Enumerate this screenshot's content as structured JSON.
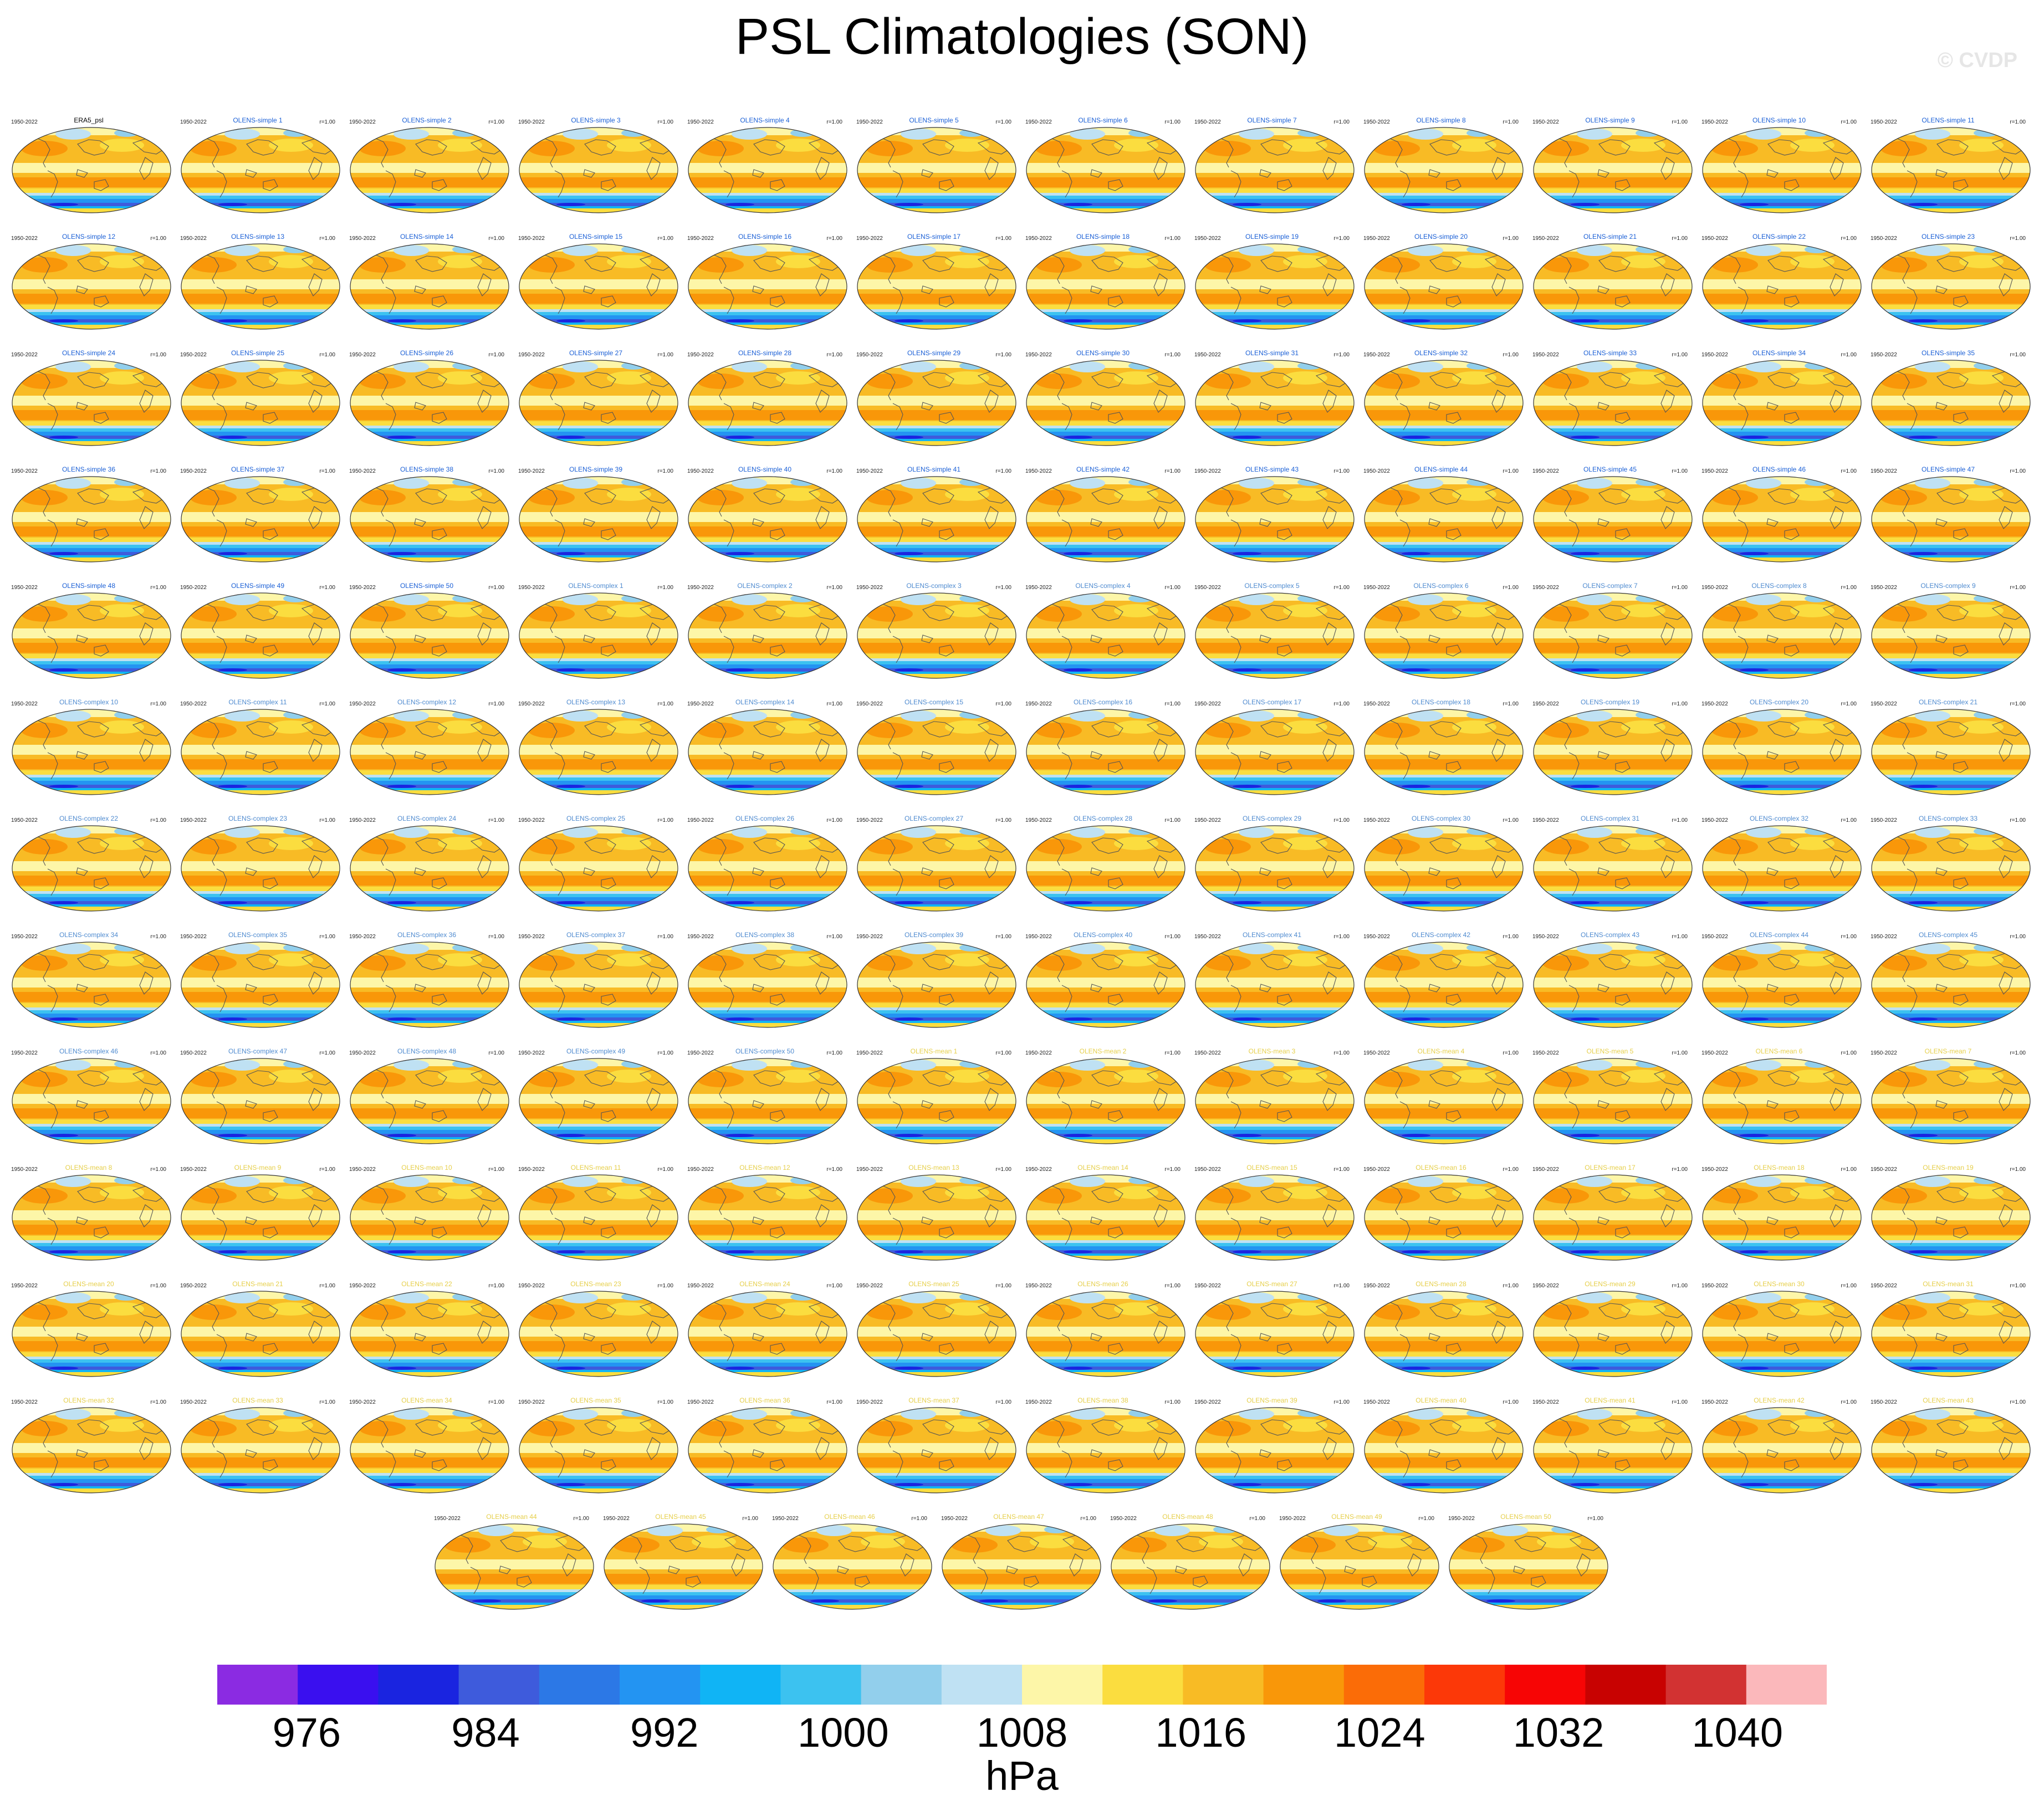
{
  "title": "PSL Climatologies (SON)",
  "watermark": "© CVDP",
  "units": "hPa",
  "chart_data": {
    "type": "heatmap",
    "title": "PSL Climatologies (SON)",
    "subtitle": "",
    "colorbar": {
      "label": "hPa",
      "tick_labels": [
        "976",
        "984",
        "992",
        "1000",
        "1008",
        "1016",
        "1024",
        "1032",
        "1040"
      ],
      "boundaries": [
        972,
        976,
        980,
        984,
        988,
        992,
        996,
        1000,
        1004,
        1008,
        1012,
        1016,
        1020,
        1024,
        1028,
        1032,
        1036,
        1040,
        1044
      ],
      "colors": [
        "#8b2be2",
        "#3a0fef",
        "#1a24e0",
        "#3e5bdc",
        "#2c78e6",
        "#2394f2",
        "#10b4f5",
        "#3cc2f0",
        "#92cfec",
        "#bfe1f3",
        "#fdf6a8",
        "#fbdd3f",
        "#f8bb25",
        "#f99709",
        "#fb6c07",
        "#fc3808",
        "#f70505",
        "#c80201",
        "#d23232",
        "#fbb8bb"
      ]
    },
    "panels": [
      {
        "title": "ERA5_psl",
        "period": "1950-2022",
        "corr": ""
      },
      {
        "title": "OLENS-simple 1",
        "period": "1950-2022",
        "corr": "r=1.00"
      },
      {
        "title": "OLENS-simple 2",
        "period": "1950-2022",
        "corr": "r=1.00"
      },
      {
        "title": "OLENS-simple 3",
        "period": "1950-2022",
        "corr": "r=1.00"
      },
      {
        "title": "OLENS-simple 4",
        "period": "1950-2022",
        "corr": "r=1.00"
      },
      {
        "title": "OLENS-simple 5",
        "period": "1950-2022",
        "corr": "r=1.00"
      },
      {
        "title": "OLENS-simple 6",
        "period": "1950-2022",
        "corr": "r=1.00"
      },
      {
        "title": "OLENS-simple 7",
        "period": "1950-2022",
        "corr": "r=1.00"
      },
      {
        "title": "OLENS-simple 8",
        "period": "1950-2022",
        "corr": "r=1.00"
      },
      {
        "title": "OLENS-simple 9",
        "period": "1950-2022",
        "corr": "r=1.00"
      },
      {
        "title": "OLENS-simple 10",
        "period": "1950-2022",
        "corr": "r=1.00"
      },
      {
        "title": "OLENS-simple 11",
        "period": "1950-2022",
        "corr": "r=1.00"
      },
      {
        "title": "OLENS-simple 12",
        "period": "1950-2022",
        "corr": "r=1.00"
      },
      {
        "title": "OLENS-simple 13",
        "period": "1950-2022",
        "corr": "r=1.00"
      },
      {
        "title": "OLENS-simple 14",
        "period": "1950-2022",
        "corr": "r=1.00"
      },
      {
        "title": "OLENS-simple 15",
        "period": "1950-2022",
        "corr": "r=1.00"
      },
      {
        "title": "OLENS-simple 16",
        "period": "1950-2022",
        "corr": "r=1.00"
      },
      {
        "title": "OLENS-simple 17",
        "period": "1950-2022",
        "corr": "r=1.00"
      },
      {
        "title": "OLENS-simple 18",
        "period": "1950-2022",
        "corr": "r=1.00"
      },
      {
        "title": "OLENS-simple 19",
        "period": "1950-2022",
        "corr": "r=1.00"
      },
      {
        "title": "OLENS-simple 20",
        "period": "1950-2022",
        "corr": "r=1.00"
      },
      {
        "title": "OLENS-simple 21",
        "period": "1950-2022",
        "corr": "r=1.00"
      },
      {
        "title": "OLENS-simple 22",
        "period": "1950-2022",
        "corr": "r=1.00"
      },
      {
        "title": "OLENS-simple 23",
        "period": "1950-2022",
        "corr": "r=1.00"
      },
      {
        "title": "OLENS-simple 24",
        "period": "1950-2022",
        "corr": "r=1.00"
      },
      {
        "title": "OLENS-simple 25",
        "period": "1950-2022",
        "corr": "r=1.00"
      },
      {
        "title": "OLENS-simple 26",
        "period": "1950-2022",
        "corr": "r=1.00"
      },
      {
        "title": "OLENS-simple 27",
        "period": "1950-2022",
        "corr": "r=1.00"
      },
      {
        "title": "OLENS-simple 28",
        "period": "1950-2022",
        "corr": "r=1.00"
      },
      {
        "title": "OLENS-simple 29",
        "period": "1950-2022",
        "corr": "r=1.00"
      },
      {
        "title": "OLENS-simple 30",
        "period": "1950-2022",
        "corr": "r=1.00"
      },
      {
        "title": "OLENS-simple 31",
        "period": "1950-2022",
        "corr": "r=1.00"
      },
      {
        "title": "OLENS-simple 32",
        "period": "1950-2022",
        "corr": "r=1.00"
      },
      {
        "title": "OLENS-simple 33",
        "period": "1950-2022",
        "corr": "r=1.00"
      },
      {
        "title": "OLENS-simple 34",
        "period": "1950-2022",
        "corr": "r=1.00"
      },
      {
        "title": "OLENS-simple 35",
        "period": "1950-2022",
        "corr": "r=1.00"
      },
      {
        "title": "OLENS-simple 36",
        "period": "1950-2022",
        "corr": "r=1.00"
      },
      {
        "title": "OLENS-simple 37",
        "period": "1950-2022",
        "corr": "r=1.00"
      },
      {
        "title": "OLENS-simple 38",
        "period": "1950-2022",
        "corr": "r=1.00"
      },
      {
        "title": "OLENS-simple 39",
        "period": "1950-2022",
        "corr": "r=1.00"
      },
      {
        "title": "OLENS-simple 40",
        "period": "1950-2022",
        "corr": "r=1.00"
      },
      {
        "title": "OLENS-simple 41",
        "period": "1950-2022",
        "corr": "r=1.00"
      },
      {
        "title": "OLENS-simple 42",
        "period": "1950-2022",
        "corr": "r=1.00"
      },
      {
        "title": "OLENS-simple 43",
        "period": "1950-2022",
        "corr": "r=1.00"
      },
      {
        "title": "OLENS-simple 44",
        "period": "1950-2022",
        "corr": "r=1.00"
      },
      {
        "title": "OLENS-simple 45",
        "period": "1950-2022",
        "corr": "r=1.00"
      },
      {
        "title": "OLENS-simple 46",
        "period": "1950-2022",
        "corr": "r=1.00"
      },
      {
        "title": "OLENS-simple 47",
        "period": "1950-2022",
        "corr": "r=1.00"
      },
      {
        "title": "OLENS-simple 48",
        "period": "1950-2022",
        "corr": "r=1.00"
      },
      {
        "title": "OLENS-simple 49",
        "period": "1950-2022",
        "corr": "r=1.00"
      },
      {
        "title": "OLENS-simple 50",
        "period": "1950-2022",
        "corr": "r=1.00"
      },
      {
        "title": "OLENS-complex 1",
        "period": "1950-2022",
        "corr": "r=1.00"
      },
      {
        "title": "OLENS-complex 2",
        "period": "1950-2022",
        "corr": "r=1.00"
      },
      {
        "title": "OLENS-complex 3",
        "period": "1950-2022",
        "corr": "r=1.00"
      },
      {
        "title": "OLENS-complex 4",
        "period": "1950-2022",
        "corr": "r=1.00"
      },
      {
        "title": "OLENS-complex 5",
        "period": "1950-2022",
        "corr": "r=1.00"
      },
      {
        "title": "OLENS-complex 6",
        "period": "1950-2022",
        "corr": "r=1.00"
      },
      {
        "title": "OLENS-complex 7",
        "period": "1950-2022",
        "corr": "r=1.00"
      },
      {
        "title": "OLENS-complex 8",
        "period": "1950-2022",
        "corr": "r=1.00"
      },
      {
        "title": "OLENS-complex 9",
        "period": "1950-2022",
        "corr": "r=1.00"
      },
      {
        "title": "OLENS-complex 10",
        "period": "1950-2022",
        "corr": "r=1.00"
      },
      {
        "title": "OLENS-complex 11",
        "period": "1950-2022",
        "corr": "r=1.00"
      },
      {
        "title": "OLENS-complex 12",
        "period": "1950-2022",
        "corr": "r=1.00"
      },
      {
        "title": "OLENS-complex 13",
        "period": "1950-2022",
        "corr": "r=1.00"
      },
      {
        "title": "OLENS-complex 14",
        "period": "1950-2022",
        "corr": "r=1.00"
      },
      {
        "title": "OLENS-complex 15",
        "period": "1950-2022",
        "corr": "r=1.00"
      },
      {
        "title": "OLENS-complex 16",
        "period": "1950-2022",
        "corr": "r=1.00"
      },
      {
        "title": "OLENS-complex 17",
        "period": "1950-2022",
        "corr": "r=1.00"
      },
      {
        "title": "OLENS-complex 18",
        "period": "1950-2022",
        "corr": "r=1.00"
      },
      {
        "title": "OLENS-complex 19",
        "period": "1950-2022",
        "corr": "r=1.00"
      },
      {
        "title": "OLENS-complex 20",
        "period": "1950-2022",
        "corr": "r=1.00"
      },
      {
        "title": "OLENS-complex 21",
        "period": "1950-2022",
        "corr": "r=1.00"
      },
      {
        "title": "OLENS-complex 22",
        "period": "1950-2022",
        "corr": "r=1.00"
      },
      {
        "title": "OLENS-complex 23",
        "period": "1950-2022",
        "corr": "r=1.00"
      },
      {
        "title": "OLENS-complex 24",
        "period": "1950-2022",
        "corr": "r=1.00"
      },
      {
        "title": "OLENS-complex 25",
        "period": "1950-2022",
        "corr": "r=1.00"
      },
      {
        "title": "OLENS-complex 26",
        "period": "1950-2022",
        "corr": "r=1.00"
      },
      {
        "title": "OLENS-complex 27",
        "period": "1950-2022",
        "corr": "r=1.00"
      },
      {
        "title": "OLENS-complex 28",
        "period": "1950-2022",
        "corr": "r=1.00"
      },
      {
        "title": "OLENS-complex 29",
        "period": "1950-2022",
        "corr": "r=1.00"
      },
      {
        "title": "OLENS-complex 30",
        "period": "1950-2022",
        "corr": "r=1.00"
      },
      {
        "title": "OLENS-complex 31",
        "period": "1950-2022",
        "corr": "r=1.00"
      },
      {
        "title": "OLENS-complex 32",
        "period": "1950-2022",
        "corr": "r=1.00"
      },
      {
        "title": "OLENS-complex 33",
        "period": "1950-2022",
        "corr": "r=1.00"
      },
      {
        "title": "OLENS-complex 34",
        "period": "1950-2022",
        "corr": "r=1.00"
      },
      {
        "title": "OLENS-complex 35",
        "period": "1950-2022",
        "corr": "r=1.00"
      },
      {
        "title": "OLENS-complex 36",
        "period": "1950-2022",
        "corr": "r=1.00"
      },
      {
        "title": "OLENS-complex 37",
        "period": "1950-2022",
        "corr": "r=1.00"
      },
      {
        "title": "OLENS-complex 38",
        "period": "1950-2022",
        "corr": "r=1.00"
      },
      {
        "title": "OLENS-complex 39",
        "period": "1950-2022",
        "corr": "r=1.00"
      },
      {
        "title": "OLENS-complex 40",
        "period": "1950-2022",
        "corr": "r=1.00"
      },
      {
        "title": "OLENS-complex 41",
        "period": "1950-2022",
        "corr": "r=1.00"
      },
      {
        "title": "OLENS-complex 42",
        "period": "1950-2022",
        "corr": "r=1.00"
      },
      {
        "title": "OLENS-complex 43",
        "period": "1950-2022",
        "corr": "r=1.00"
      },
      {
        "title": "OLENS-complex 44",
        "period": "1950-2022",
        "corr": "r=1.00"
      },
      {
        "title": "OLENS-complex 45",
        "period": "1950-2022",
        "corr": "r=1.00"
      },
      {
        "title": "OLENS-complex 46",
        "period": "1950-2022",
        "corr": "r=1.00"
      },
      {
        "title": "OLENS-complex 47",
        "period": "1950-2022",
        "corr": "r=1.00"
      },
      {
        "title": "OLENS-complex 48",
        "period": "1950-2022",
        "corr": "r=1.00"
      },
      {
        "title": "OLENS-complex 49",
        "period": "1950-2022",
        "corr": "r=1.00"
      },
      {
        "title": "OLENS-complex 50",
        "period": "1950-2022",
        "corr": "r=1.00"
      },
      {
        "title": "OLENS-mean 1",
        "period": "1950-2022",
        "corr": "r=1.00"
      },
      {
        "title": "OLENS-mean 2",
        "period": "1950-2022",
        "corr": "r=1.00"
      },
      {
        "title": "OLENS-mean 3",
        "period": "1950-2022",
        "corr": "r=1.00"
      },
      {
        "title": "OLENS-mean 4",
        "period": "1950-2022",
        "corr": "r=1.00"
      },
      {
        "title": "OLENS-mean 5",
        "period": "1950-2022",
        "corr": "r=1.00"
      },
      {
        "title": "OLENS-mean 6",
        "period": "1950-2022",
        "corr": "r=1.00"
      },
      {
        "title": "OLENS-mean 7",
        "period": "1950-2022",
        "corr": "r=1.00"
      },
      {
        "title": "OLENS-mean 8",
        "period": "1950-2022",
        "corr": "r=1.00"
      },
      {
        "title": "OLENS-mean 9",
        "period": "1950-2022",
        "corr": "r=1.00"
      },
      {
        "title": "OLENS-mean 10",
        "period": "1950-2022",
        "corr": "r=1.00"
      },
      {
        "title": "OLENS-mean 11",
        "period": "1950-2022",
        "corr": "r=1.00"
      },
      {
        "title": "OLENS-mean 12",
        "period": "1950-2022",
        "corr": "r=1.00"
      },
      {
        "title": "OLENS-mean 13",
        "period": "1950-2022",
        "corr": "r=1.00"
      },
      {
        "title": "OLENS-mean 14",
        "period": "1950-2022",
        "corr": "r=1.00"
      },
      {
        "title": "OLENS-mean 15",
        "period": "1950-2022",
        "corr": "r=1.00"
      },
      {
        "title": "OLENS-mean 16",
        "period": "1950-2022",
        "corr": "r=1.00"
      },
      {
        "title": "OLENS-mean 17",
        "period": "1950-2022",
        "corr": "r=1.00"
      },
      {
        "title": "OLENS-mean 18",
        "period": "1950-2022",
        "corr": "r=1.00"
      },
      {
        "title": "OLENS-mean 19",
        "period": "1950-2022",
        "corr": "r=1.00"
      },
      {
        "title": "OLENS-mean 20",
        "period": "1950-2022",
        "corr": "r=1.00"
      },
      {
        "title": "OLENS-mean 21",
        "period": "1950-2022",
        "corr": "r=1.00"
      },
      {
        "title": "OLENS-mean 22",
        "period": "1950-2022",
        "corr": "r=1.00"
      },
      {
        "title": "OLENS-mean 23",
        "period": "1950-2022",
        "corr": "r=1.00"
      },
      {
        "title": "OLENS-mean 24",
        "period": "1950-2022",
        "corr": "r=1.00"
      },
      {
        "title": "OLENS-mean 25",
        "period": "1950-2022",
        "corr": "r=1.00"
      },
      {
        "title": "OLENS-mean 26",
        "period": "1950-2022",
        "corr": "r=1.00"
      },
      {
        "title": "OLENS-mean 27",
        "period": "1950-2022",
        "corr": "r=1.00"
      },
      {
        "title": "OLENS-mean 28",
        "period": "1950-2022",
        "corr": "r=1.00"
      },
      {
        "title": "OLENS-mean 29",
        "period": "1950-2022",
        "corr": "r=1.00"
      },
      {
        "title": "OLENS-mean 30",
        "period": "1950-2022",
        "corr": "r=1.00"
      },
      {
        "title": "OLENS-mean 31",
        "period": "1950-2022",
        "corr": "r=1.00"
      },
      {
        "title": "OLENS-mean 32",
        "period": "1950-2022",
        "corr": "r=1.00"
      },
      {
        "title": "OLENS-mean 33",
        "period": "1950-2022",
        "corr": "r=1.00"
      },
      {
        "title": "OLENS-mean 34",
        "period": "1950-2022",
        "corr": "r=1.00"
      },
      {
        "title": "OLENS-mean 35",
        "period": "1950-2022",
        "corr": "r=1.00"
      },
      {
        "title": "OLENS-mean 36",
        "period": "1950-2022",
        "corr": "r=1.00"
      },
      {
        "title": "OLENS-mean 37",
        "period": "1950-2022",
        "corr": "r=1.00"
      },
      {
        "title": "OLENS-mean 38",
        "period": "1950-2022",
        "corr": "r=1.00"
      },
      {
        "title": "OLENS-mean 39",
        "period": "1950-2022",
        "corr": "r=1.00"
      },
      {
        "title": "OLENS-mean 40",
        "period": "1950-2022",
        "corr": "r=1.00"
      },
      {
        "title": "OLENS-mean 41",
        "period": "1950-2022",
        "corr": "r=1.00"
      },
      {
        "title": "OLENS-mean 42",
        "period": "1950-2022",
        "corr": "r=1.00"
      },
      {
        "title": "OLENS-mean 43",
        "period": "1950-2022",
        "corr": "r=1.00"
      },
      {
        "title": "OLENS-mean 44",
        "period": "1950-2022",
        "corr": "r=1.00"
      },
      {
        "title": "OLENS-mean 45",
        "period": "1950-2022",
        "corr": "r=1.00"
      },
      {
        "title": "OLENS-mean 46",
        "period": "1950-2022",
        "corr": "r=1.00"
      },
      {
        "title": "OLENS-mean 47",
        "period": "1950-2022",
        "corr": "r=1.00"
      },
      {
        "title": "OLENS-mean 48",
        "period": "1950-2022",
        "corr": "r=1.00"
      },
      {
        "title": "OLENS-mean 49",
        "period": "1950-2022",
        "corr": "r=1.00"
      },
      {
        "title": "OLENS-mean 50",
        "period": "1950-2022",
        "corr": "r=1.00"
      }
    ]
  }
}
